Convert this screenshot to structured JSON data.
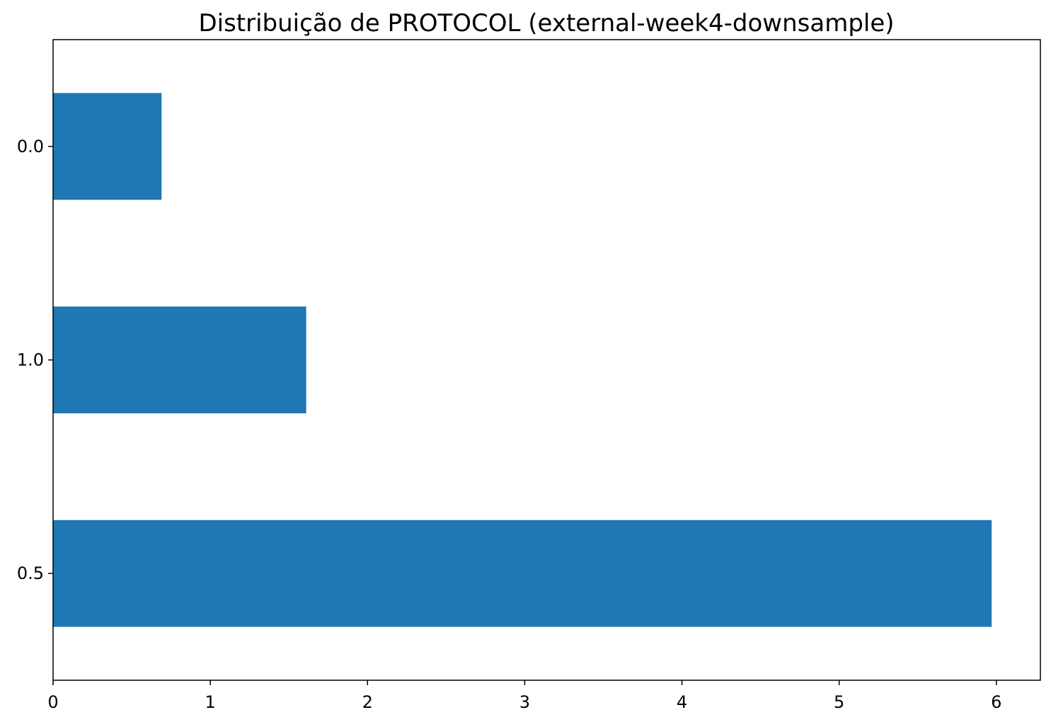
{
  "chart_data": {
    "type": "bar",
    "orientation": "horizontal",
    "title": "Distribuição de PROTOCOL (external-week4-downsample)",
    "xlabel": "",
    "ylabel": "",
    "categories": [
      "0.0",
      "1.0",
      "0.5"
    ],
    "values": [
      0.69,
      1.61,
      5.97
    ],
    "xlim": [
      0,
      6.28
    ],
    "xticks": [
      0,
      1,
      2,
      3,
      4,
      5,
      6
    ],
    "grid": false,
    "bar_color": "#1f77b4"
  }
}
